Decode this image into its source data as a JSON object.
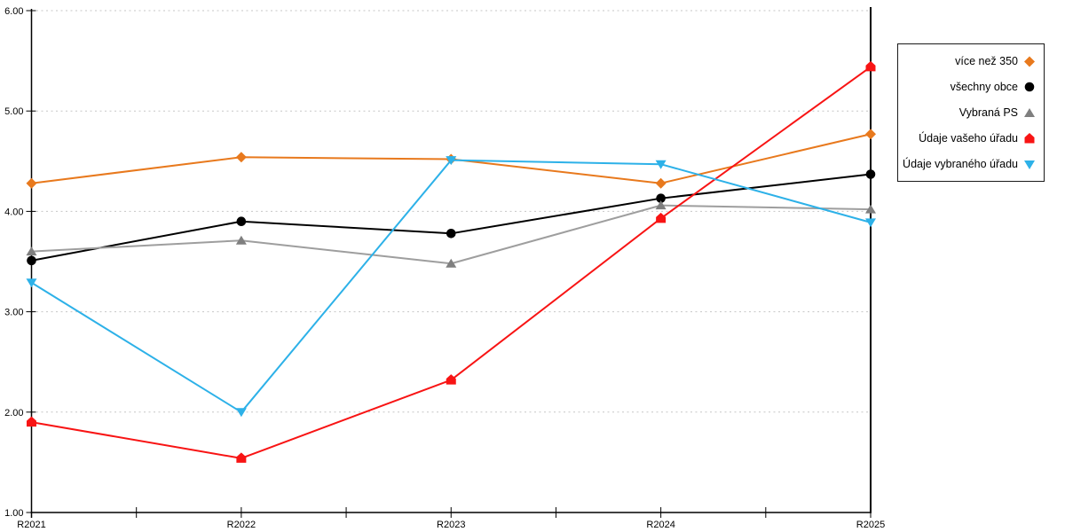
{
  "chart_data": {
    "type": "line",
    "title": "",
    "categories": [
      "R2021",
      "R2022",
      "R2023",
      "R2024",
      "R2025"
    ],
    "ylim": [
      1,
      6
    ],
    "yticks": [
      "6.00",
      "5.00",
      "4.00",
      "3.00",
      "2.00",
      "1.00"
    ],
    "grid": "horizontal-dotted",
    "legend_position": "right",
    "colors": {
      "axis": "#000000",
      "gridline": "#c6c6c6",
      "legend_border": "#1a1a1a"
    },
    "series": [
      {
        "name": "více než 350",
        "marker": "diamond",
        "color": "#E8791D",
        "values": [
          4.28,
          4.54,
          4.52,
          4.28,
          4.77
        ]
      },
      {
        "name": "všechny obce",
        "marker": "circle",
        "color": "#000000",
        "values": [
          3.51,
          3.9,
          3.78,
          4.13,
          4.37
        ]
      },
      {
        "name": "Vybraná PS",
        "marker": "triangle-up",
        "color": "#7F7F7F",
        "line_color": "#9E9E9E",
        "values": [
          3.6,
          3.71,
          3.48,
          4.06,
          4.02
        ]
      },
      {
        "name": "Údaje vašeho úřadu",
        "marker": "house",
        "color": "#F81414",
        "values": [
          1.9,
          1.54,
          2.32,
          3.93,
          5.44
        ]
      },
      {
        "name": "Údaje vybraného úřadu",
        "marker": "triangle-down",
        "color": "#2DB1E8",
        "values": [
          3.29,
          2.0,
          4.51,
          4.47,
          3.89
        ]
      }
    ]
  }
}
